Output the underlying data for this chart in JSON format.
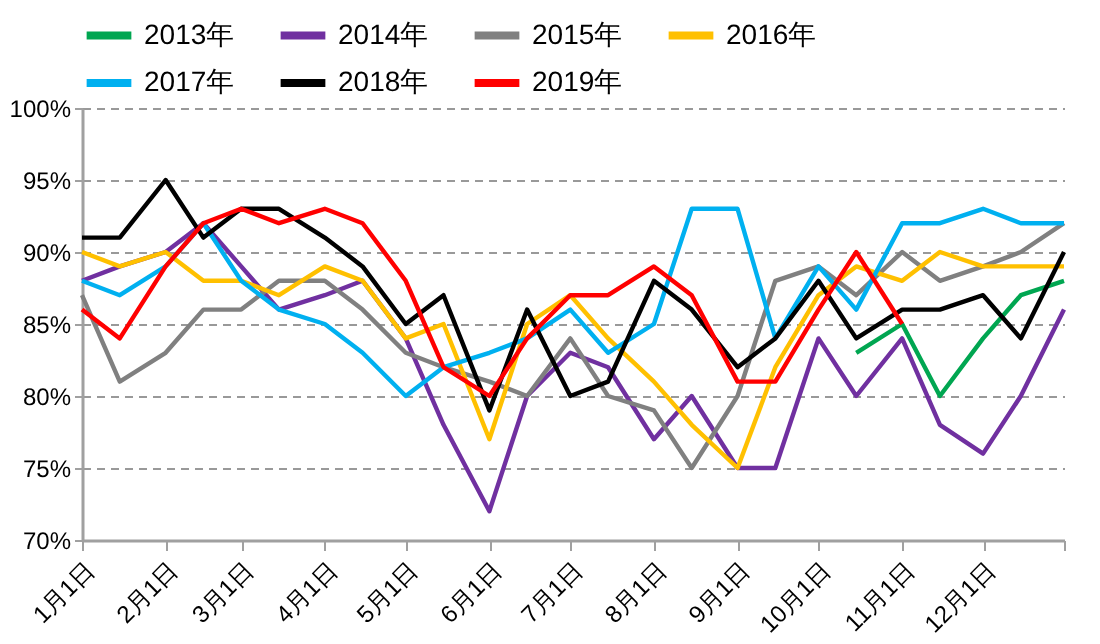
{
  "chart_data": {
    "type": "line",
    "x": [
      "--01-01",
      "--01-15",
      "--02-01",
      "--02-15",
      "--03-01",
      "--03-15",
      "--04-01",
      "--04-15",
      "--05-01",
      "--05-15",
      "--06-01",
      "--06-15",
      "--07-01",
      "--07-15",
      "--08-01",
      "--08-15",
      "--09-01",
      "--09-15",
      "--10-01",
      "--10-15",
      "--11-01",
      "--11-15",
      "--12-01",
      "--12-15",
      "--12-31"
    ],
    "series": [
      {
        "name": "2013年",
        "color": "#00a651",
        "values": [
          null,
          null,
          null,
          null,
          null,
          null,
          null,
          null,
          null,
          null,
          null,
          null,
          null,
          null,
          null,
          null,
          null,
          null,
          null,
          83,
          85,
          80,
          84,
          87,
          88
        ]
      },
      {
        "name": "2014年",
        "color": "#7030a0",
        "values": [
          88,
          89,
          90,
          92,
          89,
          86,
          87,
          88,
          84,
          78,
          72,
          80,
          83,
          82,
          77,
          80,
          75,
          75,
          84,
          80,
          84,
          78,
          76,
          80,
          86
        ]
      },
      {
        "name": "2015年",
        "color": "#808080",
        "values": [
          87,
          81,
          83,
          86,
          86,
          88,
          88,
          86,
          83,
          82,
          81,
          80,
          84,
          80,
          79,
          75,
          80,
          88,
          89,
          87,
          90,
          88,
          89,
          90,
          92
        ]
      },
      {
        "name": "2016年",
        "color": "#ffc000",
        "values": [
          90,
          89,
          90,
          88,
          88,
          87,
          89,
          88,
          84,
          85,
          77,
          85,
          87,
          84,
          81,
          78,
          75,
          82,
          87,
          89,
          88,
          90,
          89,
          89,
          89
        ]
      },
      {
        "name": "2017年",
        "color": "#00b0f0",
        "values": [
          88,
          87,
          89,
          92,
          88,
          86,
          85,
          83,
          80,
          82,
          83,
          84,
          86,
          83,
          85,
          93,
          93,
          84,
          89,
          86,
          92,
          92,
          93,
          92,
          92
        ]
      },
      {
        "name": "2018年",
        "color": "#000000",
        "values": [
          91,
          91,
          95,
          91,
          93,
          93,
          91,
          89,
          85,
          87,
          79,
          86,
          80,
          81,
          88,
          86,
          82,
          84,
          88,
          84,
          86,
          86,
          87,
          84,
          90
        ]
      },
      {
        "name": "2019年",
        "color": "#ff0000",
        "values": [
          86,
          84,
          89,
          92,
          93,
          92,
          93,
          92,
          88,
          82,
          80,
          84,
          87,
          87,
          89,
          87,
          81,
          81,
          86,
          90,
          85,
          null,
          null,
          null,
          null
        ]
      }
    ],
    "xlim": [
      "--01-01",
      "--12-31"
    ],
    "xticks": [
      {
        "value": "--01-01",
        "label": "1月1日"
      },
      {
        "value": "--02-01",
        "label": "2月1日"
      },
      {
        "value": "--03-01",
        "label": "3月1日"
      },
      {
        "value": "--04-01",
        "label": "4月1日"
      },
      {
        "value": "--05-01",
        "label": "5月1日"
      },
      {
        "value": "--06-01",
        "label": "6月1日"
      },
      {
        "value": "--07-01",
        "label": "7月1日"
      },
      {
        "value": "--08-01",
        "label": "8月1日"
      },
      {
        "value": "--09-01",
        "label": "9月1日"
      },
      {
        "value": "--10-01",
        "label": "10月1日"
      },
      {
        "value": "--11-01",
        "label": "11月1日"
      },
      {
        "value": "--12-01",
        "label": "12月1日"
      },
      {
        "value": "--12-31",
        "label": null
      }
    ],
    "ylim": [
      70,
      100
    ],
    "yticks": [
      {
        "value": 70,
        "label": "70%"
      },
      {
        "value": 75,
        "label": "75%"
      },
      {
        "value": 80,
        "label": "80%"
      },
      {
        "value": 85,
        "label": "85%"
      },
      {
        "value": 90,
        "label": "90%"
      },
      {
        "value": 95,
        "label": "95%"
      },
      {
        "value": 100,
        "label": "100%"
      }
    ],
    "grid": "y",
    "legend": "top",
    "marker": "none",
    "line_style": "solid"
  }
}
